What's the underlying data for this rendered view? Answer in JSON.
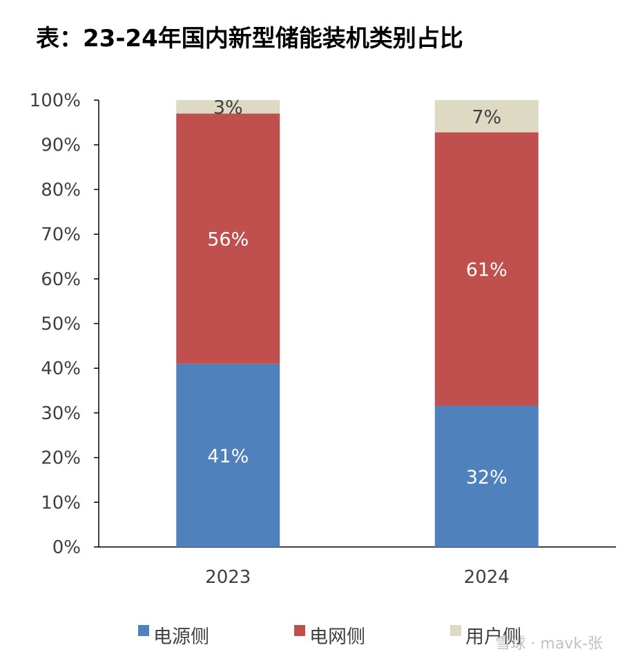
{
  "title": "表：23-24年国内新型储能装机类别占比",
  "watermark": "雪球 · mavk-张",
  "chart_data": {
    "type": "bar",
    "stacked": true,
    "categories": [
      "2023",
      "2024"
    ],
    "series": [
      {
        "name": "电源侧",
        "values": [
          41,
          31.6
        ],
        "labels": [
          "41%",
          "32%"
        ],
        "color": "#4f81bd"
      },
      {
        "name": "电网侧",
        "values": [
          56,
          61.2
        ],
        "labels": [
          "56%",
          "61%"
        ],
        "color": "#c0504d"
      },
      {
        "name": "用户侧",
        "values": [
          3,
          7.2
        ],
        "labels": [
          "3%",
          "7%"
        ],
        "color": "#ddd9c3"
      }
    ],
    "ylim": [
      0,
      100
    ],
    "yticks": [
      "0%",
      "10%",
      "20%",
      "30%",
      "40%",
      "50%",
      "60%",
      "70%",
      "80%",
      "90%",
      "100%"
    ],
    "grid": false,
    "legend": "bottom"
  }
}
